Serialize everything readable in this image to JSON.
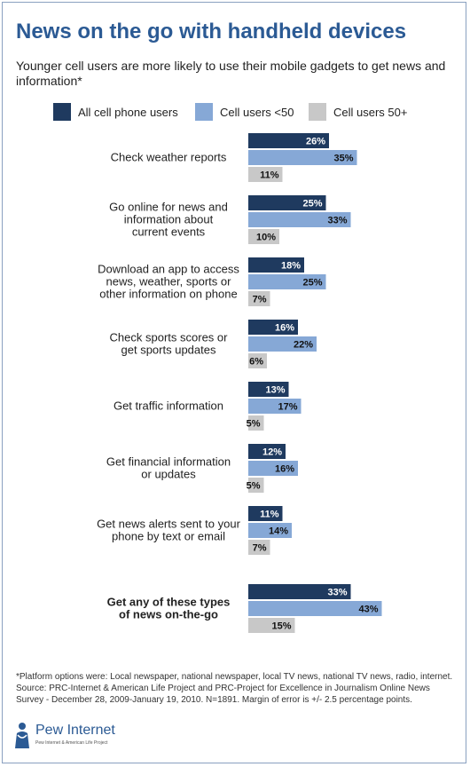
{
  "title": "News on the go with handheld devices",
  "subtitle": "Younger cell users are more likely to use their mobile gadgets to get news and information*",
  "legend": [
    {
      "label": "All cell phone users",
      "color": "#1f3a5f"
    },
    {
      "label": "Cell users <50",
      "color": "#86a8d6"
    },
    {
      "label": "Cell users 50+",
      "color": "#c8c8c8"
    }
  ],
  "chart_data": {
    "type": "bar",
    "orientation": "horizontal",
    "categories": [
      "Check weather reports",
      "Go online for news and information about current events",
      "Download an app to access news, weather, sports or other information on phone",
      "Check sports scores or get sports updates",
      "Get traffic information",
      "Get financial information or updates",
      "Get news alerts sent to your phone by text or email",
      "Get any of these types of news on-the-go"
    ],
    "category_lines": [
      [
        "Check weather reports"
      ],
      [
        "Go online for news and",
        "information about",
        "current events"
      ],
      [
        "Download an app to access",
        "news, weather, sports or",
        "other information on phone"
      ],
      [
        "Check sports scores or",
        "get sports updates"
      ],
      [
        "Get traffic information"
      ],
      [
        "Get financial information",
        "or updates"
      ],
      [
        "Get news alerts sent to your",
        "phone by text or email"
      ],
      [
        "Get any of these types",
        "of news on-the-go"
      ]
    ],
    "bold_categories": [
      7
    ],
    "series": [
      {
        "name": "All cell phone users",
        "values": [
          26,
          25,
          18,
          16,
          13,
          12,
          11,
          33
        ],
        "labels": [
          "26%",
          "25%",
          "18%",
          "16%",
          "13%",
          "12%",
          "11%",
          "33%"
        ]
      },
      {
        "name": "Cell users <50",
        "values": [
          35,
          33,
          25,
          22,
          17,
          16,
          14,
          43
        ],
        "labels": [
          "35%",
          "33%",
          "25%",
          "22%",
          "17%",
          "16%",
          "14%",
          "43%"
        ]
      },
      {
        "name": "Cell users 50+",
        "values": [
          11,
          10,
          7,
          6,
          5,
          5,
          7,
          15
        ],
        "labels": [
          "11%",
          "10%",
          "7%",
          "6%",
          "5%",
          "5%",
          "7%",
          "15%"
        ]
      }
    ],
    "xlim": [
      0,
      43
    ],
    "grid": false,
    "legend_position": "top"
  },
  "footnote": "*Platform options were: Local newspaper, national newspaper, local TV news, national TV news, radio, internet. Source: PRC-Internet & American Life Project and PRC-Project for Excellence in Journalism Online News Survey - December 28, 2009-January 19, 2010.  N=1891. Margin of error is +/- 2.5 percentage points.",
  "logo": {
    "name": "Pew Internet",
    "tagline": "Pew Internet & American Life Project"
  }
}
